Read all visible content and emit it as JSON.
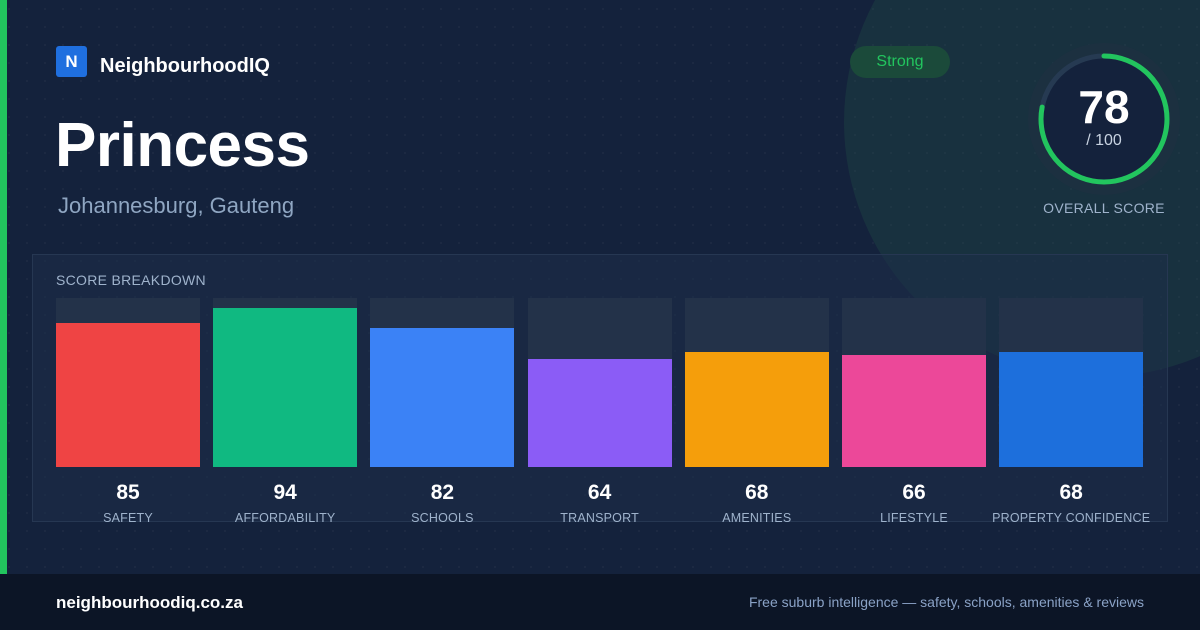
{
  "brand": {
    "logo_letter": "N",
    "name": "NeighbourhoodIQ"
  },
  "suburb": {
    "name": "Princess",
    "location": "Johannesburg, Gauteng"
  },
  "rating": {
    "label": "Strong",
    "color": "#22c55e"
  },
  "overall": {
    "score": 78,
    "score_text": "78",
    "max_text": "/ 100",
    "label": "OVERALL SCORE"
  },
  "breakdown": {
    "title": "SCORE BREAKDOWN",
    "items": [
      {
        "label": "SAFETY",
        "value": 85,
        "value_text": "85",
        "color": "#ef4444"
      },
      {
        "label": "AFFORDABILITY",
        "value": 94,
        "value_text": "94",
        "color": "#10b981"
      },
      {
        "label": "SCHOOLS",
        "value": 82,
        "value_text": "82",
        "color": "#3b82f6"
      },
      {
        "label": "TRANSPORT",
        "value": 64,
        "value_text": "64",
        "color": "#8b5cf6"
      },
      {
        "label": "AMENITIES",
        "value": 68,
        "value_text": "68",
        "color": "#f59e0b"
      },
      {
        "label": "LIFESTYLE",
        "value": 66,
        "value_text": "66",
        "color": "#ec4899"
      },
      {
        "label": "PROPERTY CONFIDENCE",
        "value": 68,
        "value_text": "68",
        "color": "#1d6fdc"
      }
    ]
  },
  "footer": {
    "url": "neighbourhoodiq.co.za",
    "tagline": "Free suburb intelligence — safety, schools, amenities & reviews"
  }
}
